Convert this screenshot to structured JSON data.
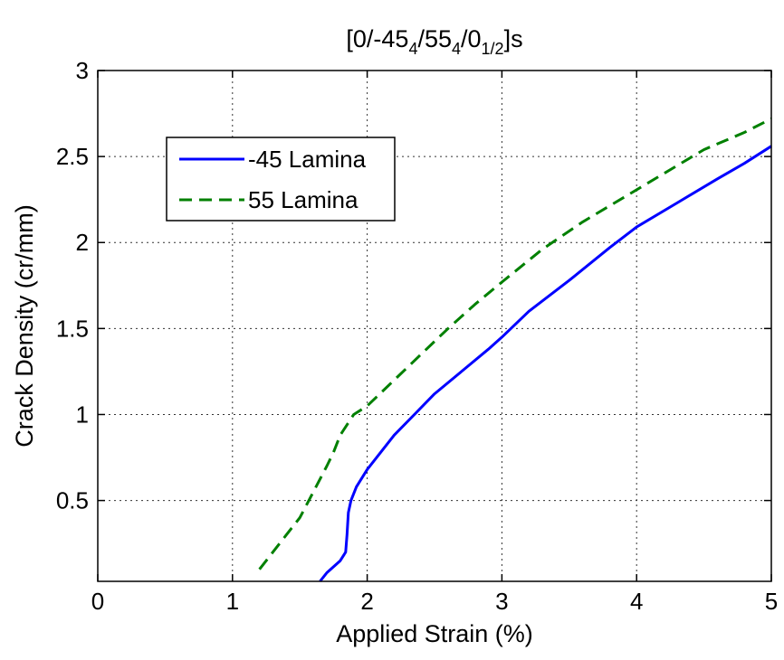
{
  "chart_data": {
    "type": "line",
    "title": "[0/-45₄/55₄/0₁/₂]s",
    "title_parts": {
      "pre": "[0/-45",
      "sub1": "4",
      "mid1": "/55",
      "sub2": "4",
      "mid2": "/0",
      "sub3": "1/2",
      "post": "]s"
    },
    "xlabel": "Applied Strain (%)",
    "ylabel": "Crack Density (cr/mm)",
    "xlim": [
      0,
      5
    ],
    "ylim": [
      0.03,
      3
    ],
    "xticks": [
      0,
      1,
      2,
      3,
      4,
      5
    ],
    "xtick_labels": [
      "0",
      "1",
      "2",
      "3",
      "4",
      "5"
    ],
    "yticks": [
      0.5,
      1,
      1.5,
      2,
      2.5,
      3
    ],
    "ytick_labels": [
      "0.5",
      "1",
      "1.5",
      "2",
      "2.5",
      "3"
    ],
    "grid": true,
    "legend_position": "upper-left",
    "series": [
      {
        "name": "-45 Lamina",
        "color": "#0000ff",
        "style": "solid",
        "x": [
          1.65,
          1.7,
          1.8,
          1.84,
          1.85,
          1.86,
          1.88,
          1.92,
          2.0,
          2.1,
          2.2,
          2.35,
          2.5,
          2.7,
          2.9,
          3.0,
          3.2,
          3.5,
          3.8,
          4.0,
          4.3,
          4.6,
          4.8,
          5.0
        ],
        "y": [
          0.03,
          0.08,
          0.15,
          0.2,
          0.3,
          0.43,
          0.5,
          0.58,
          0.68,
          0.78,
          0.88,
          1.0,
          1.12,
          1.25,
          1.38,
          1.45,
          1.6,
          1.78,
          1.97,
          2.09,
          2.23,
          2.37,
          2.46,
          2.56
        ]
      },
      {
        "name": "55 Lamina",
        "color": "#008000",
        "style": "dashed",
        "x": [
          1.2,
          1.3,
          1.4,
          1.5,
          1.6,
          1.7,
          1.75,
          1.8,
          1.9,
          2.0,
          2.2,
          2.4,
          2.6,
          2.8,
          3.0,
          3.3,
          3.6,
          3.9,
          4.2,
          4.5,
          4.8,
          5.0
        ],
        "y": [
          0.1,
          0.2,
          0.3,
          0.4,
          0.55,
          0.7,
          0.78,
          0.88,
          1.0,
          1.05,
          1.2,
          1.35,
          1.5,
          1.64,
          1.77,
          1.96,
          2.12,
          2.26,
          2.4,
          2.54,
          2.64,
          2.72
        ]
      }
    ]
  }
}
